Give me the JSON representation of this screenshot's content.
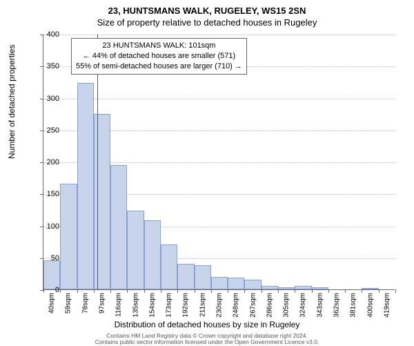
{
  "title_main": "23, HUNTSMANS WALK, RUGELEY, WS15 2SN",
  "title_sub": "Size of property relative to detached houses in Rugeley",
  "ylabel": "Number of detached properties",
  "xlabel": "Distribution of detached houses by size in Rugeley",
  "ylim": [
    0,
    400
  ],
  "ytick_step": 50,
  "bar_color": "#c8d4ec",
  "bar_border": "#8aa0cc",
  "refline_color": "#d02020",
  "refline_value": 101,
  "x_start": 40,
  "x_step": 19,
  "bars": [
    {
      "label": "40sqm",
      "value": 45
    },
    {
      "label": "59sqm",
      "value": 165
    },
    {
      "label": "78sqm",
      "value": 323
    },
    {
      "label": "97sqm",
      "value": 275
    },
    {
      "label": "116sqm",
      "value": 195
    },
    {
      "label": "135sqm",
      "value": 123
    },
    {
      "label": "154sqm",
      "value": 108
    },
    {
      "label": "173sqm",
      "value": 70
    },
    {
      "label": "192sqm",
      "value": 40
    },
    {
      "label": "211sqm",
      "value": 38
    },
    {
      "label": "230sqm",
      "value": 20
    },
    {
      "label": "248sqm",
      "value": 18
    },
    {
      "label": "267sqm",
      "value": 15
    },
    {
      "label": "286sqm",
      "value": 5
    },
    {
      "label": "305sqm",
      "value": 3
    },
    {
      "label": "324sqm",
      "value": 5
    },
    {
      "label": "343sqm",
      "value": 3
    },
    {
      "label": "362sqm",
      "value": 0
    },
    {
      "label": "381sqm",
      "value": 0
    },
    {
      "label": "400sqm",
      "value": 2
    },
    {
      "label": "419sqm",
      "value": 0
    }
  ],
  "annotation": {
    "line1": "23 HUNTSMANS WALK: 101sqm",
    "line2": "← 44% of detached houses are smaller (571)",
    "line3": "55% of semi-detached houses are larger (710) →"
  },
  "footer1": "Contains HM Land Registry data © Crown copyright and database right 2024.",
  "footer2": "Contains public sector information licensed under the Open Government Licence v3.0."
}
